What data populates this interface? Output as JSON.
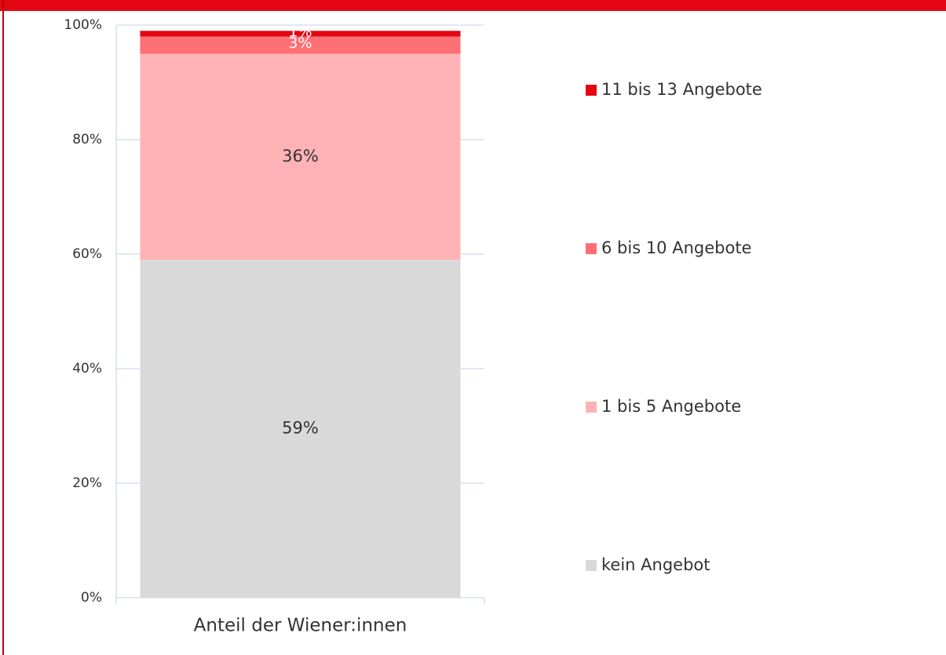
{
  "chart_data": {
    "type": "stacked_bar",
    "categories": [
      "Anteil der Wiener:innen"
    ],
    "series": [
      {
        "name": "kein Angebot",
        "color": "#d9d9d9",
        "values": [
          59
        ],
        "value_labels": [
          "59%"
        ]
      },
      {
        "name": "1 bis 5 Angebote",
        "color": "#ffb3b6",
        "values": [
          36
        ],
        "value_labels": [
          "36%"
        ]
      },
      {
        "name": "6 bis 10 Angebote",
        "color": "#ff6f76",
        "values": [
          3
        ],
        "value_labels": [
          "3%"
        ]
      },
      {
        "name": "11 bis 13 Angebote",
        "color": "#e30613",
        "values": [
          1
        ],
        "value_labels": [
          "1%"
        ]
      }
    ],
    "ylim": [
      0,
      100
    ],
    "yticks": [
      {
        "value": 0,
        "label": "0%"
      },
      {
        "value": 20,
        "label": "20%"
      },
      {
        "value": 40,
        "label": "40%"
      },
      {
        "value": 60,
        "label": "60%"
      },
      {
        "value": 80,
        "label": "80%"
      },
      {
        "value": 100,
        "label": "100%"
      }
    ],
    "grid": true,
    "legend": "right"
  }
}
